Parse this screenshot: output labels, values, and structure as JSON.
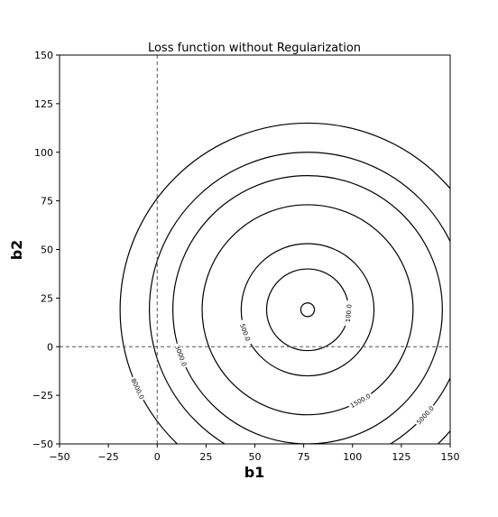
{
  "chart_data": {
    "type": "contour",
    "title": "Loss function without Regularization",
    "xlabel": "b1",
    "ylabel": "b2",
    "xlim": [
      -50,
      150
    ],
    "ylim": [
      -50,
      150
    ],
    "x_ticks": [
      -50,
      -25,
      0,
      25,
      50,
      75,
      100,
      125,
      150
    ],
    "y_ticks": [
      -50,
      -25,
      0,
      25,
      50,
      75,
      100,
      125,
      150
    ],
    "x_tick_labels": [
      "−50",
      "−25",
      "0",
      "25",
      "50",
      "75",
      "100",
      "125",
      "150"
    ],
    "y_tick_labels": [
      "−50",
      "−25",
      "0",
      "25",
      "50",
      "75",
      "100",
      "125",
      "150"
    ],
    "center": [
      77,
      19
    ],
    "reference_lines": [
      {
        "axis": "x",
        "value": 0,
        "style": "dashed"
      },
      {
        "axis": "y",
        "value": 0,
        "style": "dashed"
      }
    ],
    "levels": [
      {
        "level": 10,
        "label": "",
        "x_semi": 3.5,
        "y_semi": 3.5
      },
      {
        "level": 100,
        "label": "100.0",
        "x_semi": 21,
        "y_semi": 21
      },
      {
        "level": 500,
        "label": "500.0",
        "x_semi": 34,
        "y_semi": 34
      },
      {
        "level": 1500,
        "label": "1500.0",
        "x_semi": 54,
        "y_semi": 54
      },
      {
        "level": 3000,
        "label": "3000.0",
        "x_semi": 69,
        "y_semi": 69
      },
      {
        "level": 5000,
        "label": "5000.0",
        "x_semi": 81,
        "y_semi": 81
      },
      {
        "level": 8000,
        "label": "8000.0",
        "x_semi": 96,
        "y_semi": 96
      }
    ],
    "grid": false,
    "line_color": "#000000",
    "reference_line_color": "#555555"
  }
}
